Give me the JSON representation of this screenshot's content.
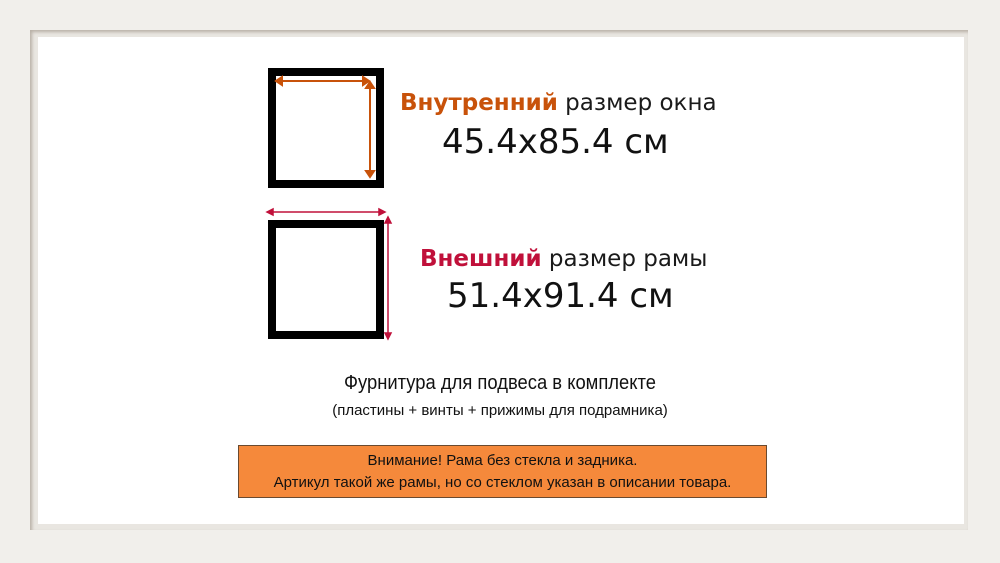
{
  "inner": {
    "highlight": "Внутренний",
    "rest": " размер окна",
    "size": "45.4x85.4 см",
    "color": "#c8520a"
  },
  "outer": {
    "highlight": "Внешний",
    "rest": " размер рамы",
    "size": "51.4x91.4 см",
    "color": "#c0103a"
  },
  "hardware": {
    "title": "Фурнитура для подвеса в комплекте",
    "subtitle": "(пластины + винты + прижимы для подрамника)"
  },
  "warning": {
    "line1": "Внимание! Рама без стекла и задника.",
    "line2": "Артикул такой же рамы, но со стеклом указан в описании товара.",
    "background": "#f5893b"
  }
}
